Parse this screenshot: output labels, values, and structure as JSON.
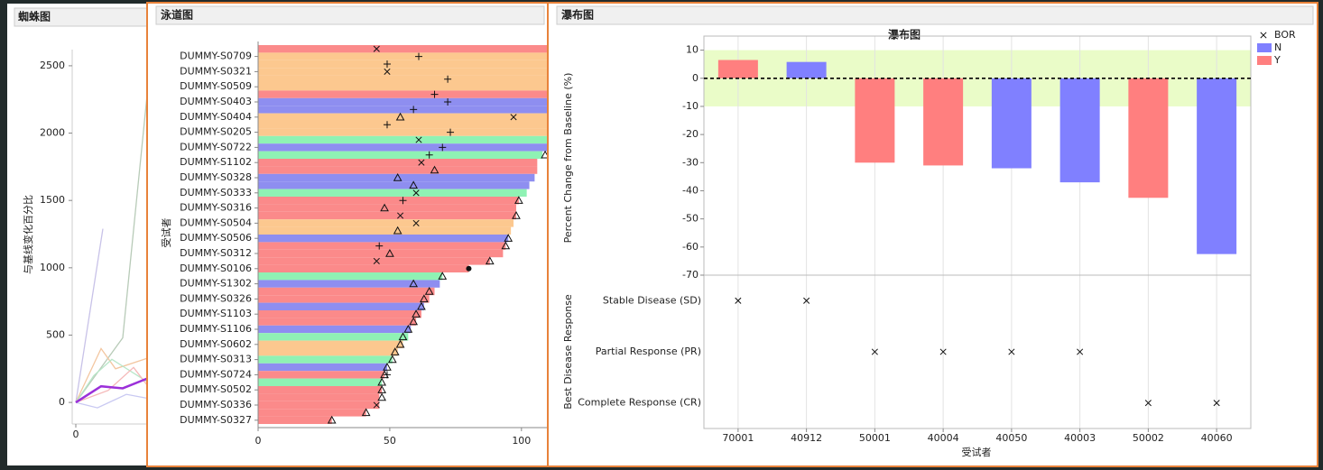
{
  "chart_data": [
    {
      "type": "line",
      "panel_title": "蜘蛛图",
      "y_label": "与基线变化百分比",
      "xlim": [
        0,
        4
      ],
      "xticks": [
        0
      ],
      "ylim": [
        -160,
        2620
      ],
      "yticks": [
        0,
        500,
        1000,
        1500,
        2000,
        2500
      ],
      "series": [
        {
          "color": "#c8c2e8",
          "x": [
            0,
            0.75
          ],
          "values": [
            0,
            1290
          ]
        },
        {
          "color": "#b8cbb8",
          "x": [
            0,
            1.3,
            2
          ],
          "values": [
            0,
            480,
            2350
          ]
        },
        {
          "color": "#f3c6a0",
          "x": [
            0,
            0.7,
            1.1,
            2
          ],
          "values": [
            0,
            400,
            250,
            330
          ]
        },
        {
          "color": "#b8e6c8",
          "x": [
            0,
            0.5,
            1,
            2
          ],
          "values": [
            0,
            200,
            320,
            150
          ]
        },
        {
          "color": "#f5b8b8",
          "x": [
            0,
            0.9,
            1.6,
            2
          ],
          "values": [
            0,
            90,
            260,
            120
          ]
        },
        {
          "color": "#c9c9f2",
          "x": [
            0,
            0.6,
            1.4,
            2
          ],
          "values": [
            0,
            -40,
            60,
            30
          ]
        },
        {
          "color": "#9b30d9",
          "linewidth": 2.5,
          "x": [
            0,
            0.7,
            1.3,
            2
          ],
          "values": [
            0,
            120,
            105,
            180
          ]
        }
      ]
    },
    {
      "type": "swimmer",
      "panel_title": "泳道图",
      "y_label": "受试者",
      "categories": [
        null,
        "DUMMY-S0709",
        null,
        "DUMMY-S0321",
        null,
        "DUMMY-S0509",
        null,
        "DUMMY-S0403",
        null,
        "DUMMY-S0404",
        null,
        "DUMMY-S0205",
        null,
        "DUMMY-S0722",
        null,
        "DUMMY-S1102",
        null,
        "DUMMY-S0328",
        null,
        "DUMMY-S0333",
        null,
        "DUMMY-S0316",
        null,
        "DUMMY-S0504",
        null,
        "DUMMY-S0506",
        null,
        "DUMMY-S0312",
        null,
        "DUMMY-S0106",
        null,
        "DUMMY-S1302",
        null,
        "DUMMY-S0326",
        null,
        "DUMMY-S1103",
        null,
        "DUMMY-S1106",
        null,
        "DUMMY-S0602",
        null,
        "DUMMY-S0313",
        null,
        "DUMMY-S0724",
        null,
        "DUMMY-S0502",
        null,
        "DUMMY-S0336",
        null,
        "DUMMY-S0327"
      ],
      "values": [
        115,
        115,
        115,
        115,
        115,
        115,
        115,
        115,
        115,
        115,
        115,
        115,
        115,
        115,
        108,
        106,
        106,
        105,
        103,
        102,
        99,
        98,
        98,
        97,
        96,
        95,
        94,
        93,
        88,
        80,
        70,
        69,
        67,
        65,
        63,
        62,
        60,
        58,
        57,
        55,
        53,
        51,
        49,
        48,
        47,
        47,
        46,
        46,
        41,
        28
      ],
      "colors": [
        "#fb8a8a",
        "#fcc88f",
        "#fcc88f",
        "#fcc88f",
        "#fcc88f",
        "#fcc88f",
        "#fb8a8a",
        "#8e8ef0",
        "#8e8ef0",
        "#fcc88f",
        "#fcc88f",
        "#fcc88f",
        "#8ff2b4",
        "#8e8ef0",
        "#8ff2b4",
        "#fb8a8a",
        "#fb8a8a",
        "#8e8ef0",
        "#8e8ef0",
        "#8ff2b4",
        "#fb8a8a",
        "#fb8a8a",
        "#fb8a8a",
        "#fcc88f",
        "#fcc88f",
        "#8e8ef0",
        "#fb8a8a",
        "#fb8a8a",
        "#fb8a8a",
        "#fb8a8a",
        "#8ff2b4",
        "#8e8ef0",
        "#fb8a8a",
        "#fb8a8a",
        "#8e8ef0",
        "#fb8a8a",
        "#fb8a8a",
        "#8e8ef0",
        "#8ff2b4",
        "#fcc88f",
        "#fcc88f",
        "#8ff2b4",
        "#8e8ef0",
        "#fb8a8a",
        "#8ff2b4",
        "#fb8a8a",
        "#fb8a8a",
        "#fb8a8a",
        "#fb8a8a",
        "#fb8a8a"
      ],
      "xlim": [
        0,
        110
      ],
      "xticks": [
        0,
        50,
        100
      ],
      "markers": [
        {
          "symbol": "triangle",
          "rows": [
            9,
            14,
            16,
            17,
            18,
            20,
            21,
            22,
            24,
            25,
            26,
            27,
            28,
            30,
            31,
            32,
            33,
            34,
            35,
            36,
            37,
            38,
            39,
            40,
            41,
            42,
            43,
            44,
            45,
            46,
            48,
            49
          ],
          "values": [
            54,
            109,
            67,
            53,
            59,
            99,
            48,
            98,
            53,
            95,
            94,
            50,
            88,
            70,
            59,
            65,
            63,
            62,
            60,
            59,
            57,
            55,
            54,
            52,
            51,
            49,
            48,
            47,
            47,
            47,
            41,
            28
          ]
        },
        {
          "symbol": "x",
          "rows": [
            0,
            3,
            9,
            12,
            15,
            19,
            22,
            23,
            28,
            47
          ],
          "values": [
            45,
            49,
            97,
            61,
            62,
            60,
            54,
            60,
            45,
            45
          ]
        },
        {
          "symbol": "plus",
          "rows": [
            1,
            2,
            4,
            6,
            7,
            8,
            10,
            11,
            13,
            14,
            20,
            26,
            43
          ],
          "values": [
            61,
            49,
            72,
            67,
            72,
            59,
            49,
            73,
            70,
            65,
            55,
            46,
            49
          ]
        },
        {
          "symbol": "dot",
          "rows": [
            29
          ],
          "values": [
            80
          ]
        }
      ]
    },
    {
      "type": "waterfall",
      "panel_title": "瀑布图",
      "title": "瀑布图",
      "y_label": "Percent Change from Baseline (%)",
      "x_label": "受试者",
      "categories": [
        "70001",
        "40912",
        "50001",
        "40004",
        "40050",
        "40003",
        "50002",
        "40060"
      ],
      "values": [
        6.5,
        5.8,
        -30,
        -31,
        -32,
        -37,
        -42.5,
        -62.5
      ],
      "groups": [
        "Y",
        "N",
        "Y",
        "Y",
        "N",
        "N",
        "Y",
        "N"
      ],
      "ylim": [
        -70,
        15
      ],
      "yticks": [
        10,
        0,
        -10,
        -20,
        -30,
        -40,
        -50,
        -60,
        -70
      ],
      "reference_band": [
        -10,
        10
      ],
      "band_color": "#eafcc8",
      "reference_line": 0,
      "legend": [
        {
          "name": "BOR",
          "symbol": "x"
        },
        {
          "name": "N",
          "color": "#8080ff"
        },
        {
          "name": "Y",
          "color": "#ff7f7f"
        }
      ],
      "response_label": "Best Disease Response",
      "response_levels": [
        "Stable Disease (SD)",
        "Partial Response (PR)",
        "Complete Response (CR)"
      ],
      "responses": [
        "Stable Disease (SD)",
        "Stable Disease (SD)",
        "Partial Response (PR)",
        "Partial Response (PR)",
        "Partial Response (PR)",
        "Partial Response (PR)",
        "Complete Response (CR)",
        "Complete Response (CR)"
      ]
    }
  ]
}
